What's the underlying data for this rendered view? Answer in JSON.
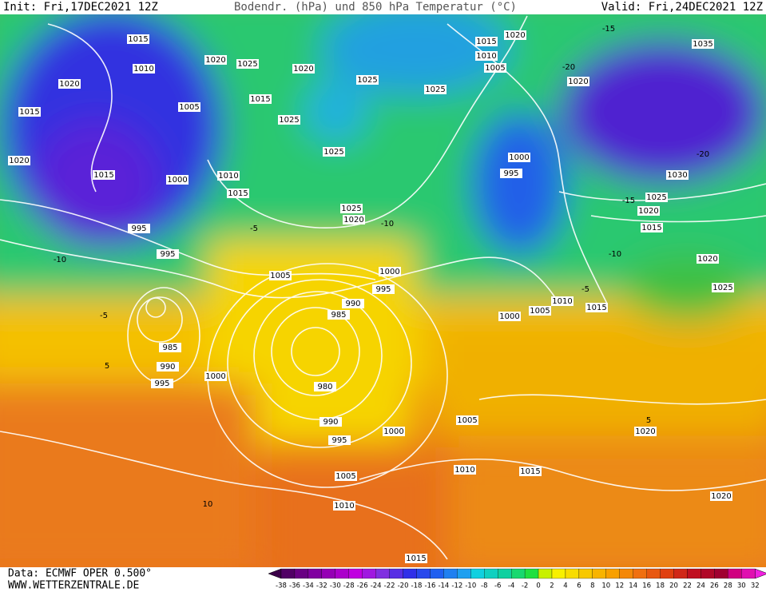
{
  "header": {
    "init": "Init: Fri,17DEC2021 12Z",
    "title": "Bodendr. (hPa) und 850 hPa Temperatur (°C)",
    "valid": "Valid: Fri,24DEC2021 12Z"
  },
  "isobar_labels": [
    1015,
    1010,
    1020,
    1015,
    1020,
    1025,
    1020,
    1005,
    1015,
    1025,
    1020,
    1015,
    1000,
    1010,
    1015,
    995,
    995,
    1005,
    1025,
    1025,
    1025,
    1025,
    1020,
    1015,
    1010,
    1005,
    1020,
    1035,
    1020,
    1000,
    995,
    1030,
    1025,
    1020,
    1015,
    1020,
    1025,
    1000,
    995,
    990,
    985,
    1005,
    1010,
    1015,
    1000,
    985,
    990,
    995,
    1000,
    980,
    990,
    995,
    1000,
    1005,
    1020,
    1005,
    1010,
    1010,
    1015,
    1020,
    1015
  ],
  "temperature_labels": [
    -15,
    -20,
    -20,
    -15,
    -10,
    -5,
    -10,
    -5,
    5,
    10,
    5,
    -10,
    -5
  ],
  "colorbar": {
    "ticks": [
      -38,
      -36,
      -34,
      -32,
      -30,
      -28,
      -26,
      -24,
      -22,
      -20,
      -18,
      -16,
      -14,
      -12,
      -10,
      -8,
      -6,
      -4,
      -2,
      0,
      2,
      4,
      6,
      8,
      10,
      12,
      14,
      16,
      18,
      20,
      22,
      24,
      26,
      28,
      30,
      32
    ]
  },
  "footer": {
    "data_source": "Data: ECMWF OPER 0.500°",
    "website": "WWW.WETTERZENTRALE.DE"
  }
}
